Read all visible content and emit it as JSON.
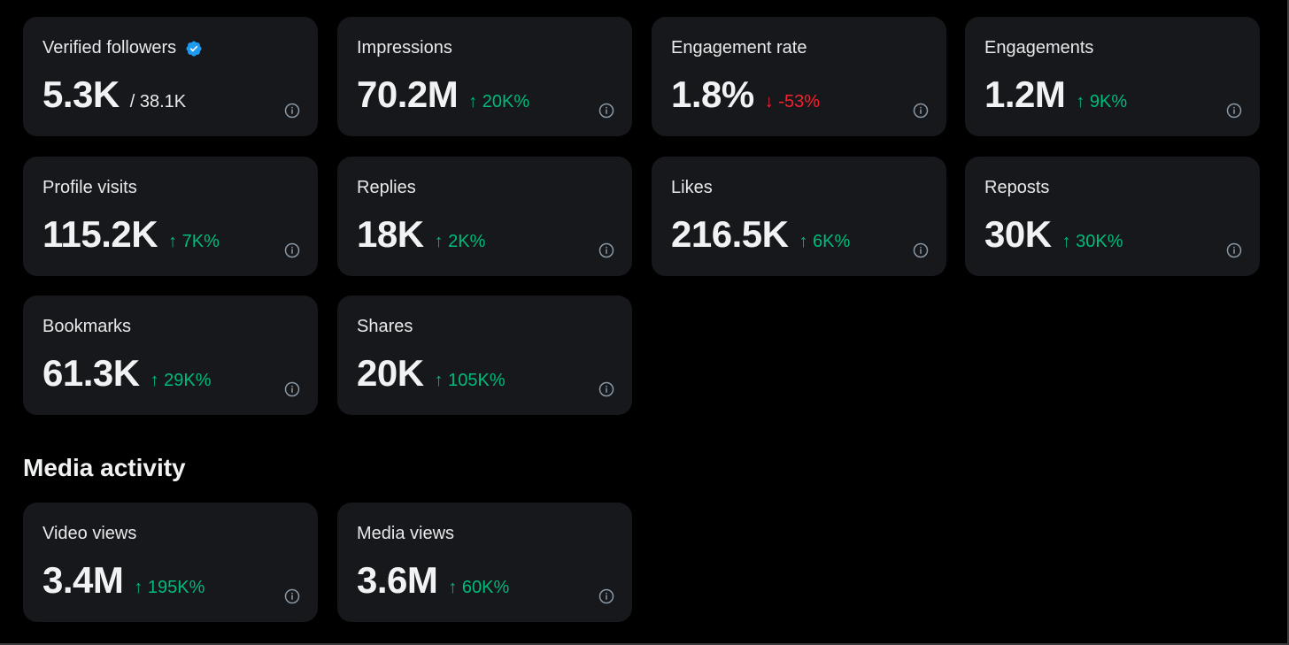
{
  "colors": {
    "background": "#000000",
    "card": "#16181c",
    "positive": "#00ba7c",
    "negative": "#f4212e",
    "verified": "#1d9bf0"
  },
  "metrics": [
    {
      "label": "Verified followers",
      "value": "5.3K",
      "sub": "/ 38.1K",
      "verified_icon": "verified-badge-icon"
    },
    {
      "label": "Impressions",
      "value": "70.2M",
      "change": "↑ 20K%",
      "direction": "up"
    },
    {
      "label": "Engagement rate",
      "value": "1.8%",
      "change": "↓ -53%",
      "direction": "down"
    },
    {
      "label": "Engagements",
      "value": "1.2M",
      "change": "↑ 9K%",
      "direction": "up"
    },
    {
      "label": "Profile visits",
      "value": "115.2K",
      "change": "↑ 7K%",
      "direction": "up"
    },
    {
      "label": "Replies",
      "value": "18K",
      "change": "↑ 2K%",
      "direction": "up"
    },
    {
      "label": "Likes",
      "value": "216.5K",
      "change": "↑ 6K%",
      "direction": "up"
    },
    {
      "label": "Reposts",
      "value": "30K",
      "change": "↑ 30K%",
      "direction": "up"
    },
    {
      "label": "Bookmarks",
      "value": "61.3K",
      "change": "↑ 29K%",
      "direction": "up"
    },
    {
      "label": "Shares",
      "value": "20K",
      "change": "↑ 105K%",
      "direction": "up"
    }
  ],
  "media_section": {
    "title": "Media activity",
    "metrics": [
      {
        "label": "Video views",
        "value": "3.4M",
        "change": "↑ 195K%",
        "direction": "up"
      },
      {
        "label": "Media views",
        "value": "3.6M",
        "change": "↑ 60K%",
        "direction": "up"
      }
    ]
  },
  "icons": {
    "info": "info-icon",
    "verified": "verified-badge-icon"
  }
}
